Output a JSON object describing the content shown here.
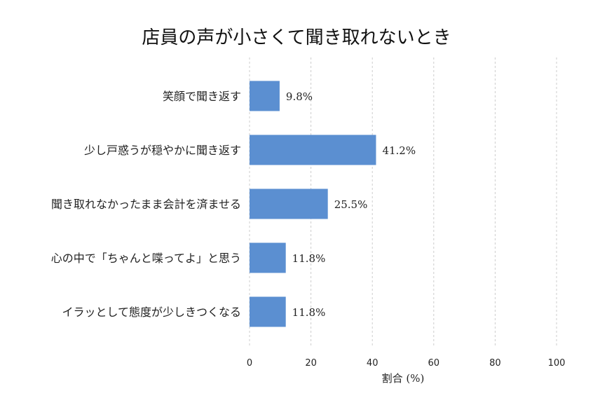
{
  "chart_data": {
    "type": "bar",
    "orientation": "horizontal",
    "title": "店員の声が小さくて聞き取れないとき",
    "xlabel": "割合 (%)",
    "ylabel": "",
    "categories": [
      "笑顔で聞き返す",
      "少し戸惑うが穏やかに聞き返す",
      "聞き取れなかったまま会計を済ませる",
      "心の中で「ちゃんと喋ってよ」と思う",
      "イラッとして態度が少しきつくなる"
    ],
    "values": [
      9.8,
      41.2,
      25.5,
      11.8,
      11.8
    ],
    "value_labels": [
      "9.8%",
      "41.2%",
      "25.5%",
      "11.8%",
      "11.8%"
    ],
    "xlim": [
      0,
      100
    ],
    "xticks": [
      0,
      20,
      40,
      60,
      80,
      100
    ],
    "grid": "x-dashed",
    "bar_color": "#5b8fd1"
  }
}
